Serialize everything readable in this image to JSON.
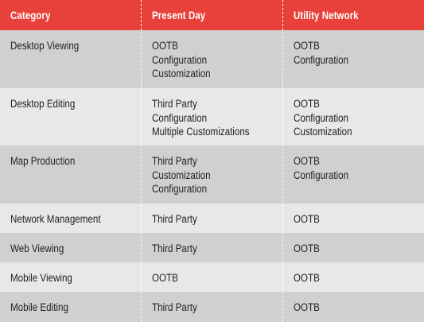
{
  "header": {
    "category": "Category",
    "present_day": "Present Day",
    "utility_network": "Utility Network"
  },
  "rows": [
    {
      "category": "Desktop Viewing",
      "present": [
        "OOTB",
        "Configuration",
        "Customization"
      ],
      "utility": [
        "OOTB",
        "Configuration"
      ]
    },
    {
      "category": "Desktop Editing",
      "present": [
        "Third Party",
        "Configuration",
        "Multiple Customizations"
      ],
      "utility": [
        "OOTB",
        "Configuration",
        "Customization"
      ]
    },
    {
      "category": "Map Production",
      "present": [
        "Third Party",
        "Customization",
        "Configuration"
      ],
      "utility": [
        "OOTB",
        "Configuration"
      ]
    },
    {
      "category": "Network Management",
      "present": [
        "Third Party"
      ],
      "utility": [
        "OOTB"
      ]
    },
    {
      "category": "Web Viewing",
      "present": [
        "Third Party"
      ],
      "utility": [
        "OOTB"
      ]
    },
    {
      "category": "Mobile Viewing",
      "present": [
        "OOTB"
      ],
      "utility": [
        "OOTB"
      ]
    },
    {
      "category": "Mobile Editing",
      "present": [
        "Third Party"
      ],
      "utility": [
        "OOTB"
      ]
    }
  ],
  "colors": {
    "header": "#e8403a",
    "row_dark": "#d0d0d0",
    "row_light": "#e8e8e8"
  }
}
